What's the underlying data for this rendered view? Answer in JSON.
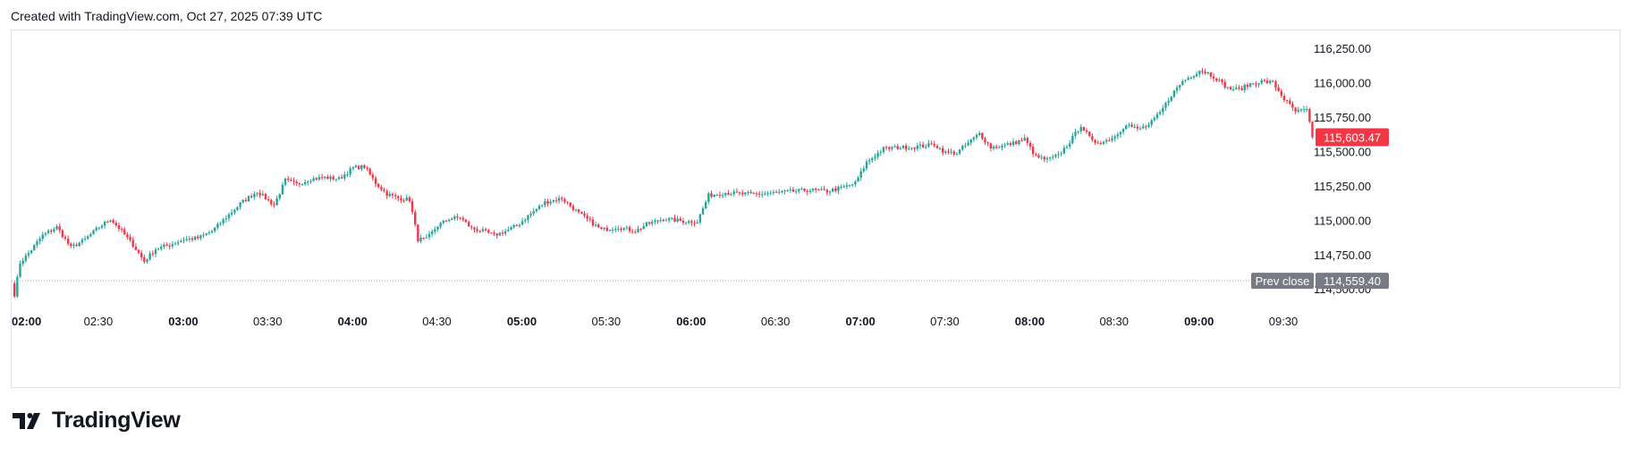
{
  "header": {
    "text": "Created with TradingView.com, Oct 27, 2025 07:39 UTC"
  },
  "brand": {
    "name": "TradingView",
    "icon": "tradingview-logo-icon"
  },
  "colors": {
    "up": "#26a69a",
    "down": "#f23645",
    "grid_text": "#131722",
    "prev_close_bg": "#787b86"
  },
  "chart_data": {
    "type": "candlestick",
    "ylim": [
      114300,
      116380
    ],
    "y_ticks": [
      114500,
      114750,
      115000,
      115250,
      115500,
      115750,
      116000,
      116250
    ],
    "y_tick_labels": [
      "114,500.00",
      "114,750.00",
      "115,000.00",
      "115,250.00",
      "115,500.00",
      "115,750.00",
      "116,000.00",
      "116,250.00"
    ],
    "x_ticks": [
      {
        "label": "02:00",
        "index": 0,
        "bold": true
      },
      {
        "label": "02:30",
        "index": 30,
        "bold": false
      },
      {
        "label": "03:00",
        "index": 60,
        "bold": true
      },
      {
        "label": "03:30",
        "index": 90,
        "bold": false
      },
      {
        "label": "04:00",
        "index": 120,
        "bold": true
      },
      {
        "label": "04:30",
        "index": 150,
        "bold": false
      },
      {
        "label": "05:00",
        "index": 180,
        "bold": true
      },
      {
        "label": "05:30",
        "index": 210,
        "bold": false
      },
      {
        "label": "06:00",
        "index": 240,
        "bold": true
      },
      {
        "label": "06:30",
        "index": 270,
        "bold": false
      },
      {
        "label": "07:00",
        "index": 300,
        "bold": true
      },
      {
        "label": "07:30",
        "index": 330,
        "bold": false
      },
      {
        "label": "08:00",
        "index": 360,
        "bold": true
      },
      {
        "label": "08:30",
        "index": 390,
        "bold": false
      },
      {
        "label": "09:00",
        "index": 420,
        "bold": true
      },
      {
        "label": "09:30",
        "index": 450,
        "bold": false
      }
    ],
    "last_price": {
      "value": 115603.47,
      "label": "115,603.47"
    },
    "prev_close": {
      "value": 114559.4,
      "label": "114,559.40",
      "caption": "Prev close"
    },
    "close_anchors": [
      [
        0,
        114460
      ],
      [
        2,
        114690
      ],
      [
        5,
        114760
      ],
      [
        10,
        114890
      ],
      [
        15,
        114950
      ],
      [
        20,
        114800
      ],
      [
        25,
        114860
      ],
      [
        30,
        114950
      ],
      [
        34,
        115010
      ],
      [
        38,
        114920
      ],
      [
        42,
        114820
      ],
      [
        46,
        114700
      ],
      [
        50,
        114790
      ],
      [
        55,
        114820
      ],
      [
        60,
        114860
      ],
      [
        65,
        114870
      ],
      [
        70,
        114920
      ],
      [
        75,
        115020
      ],
      [
        80,
        115120
      ],
      [
        86,
        115210
      ],
      [
        92,
        115110
      ],
      [
        96,
        115290
      ],
      [
        100,
        115260
      ],
      [
        105,
        115300
      ],
      [
        110,
        115310
      ],
      [
        115,
        115300
      ],
      [
        120,
        115380
      ],
      [
        124,
        115390
      ],
      [
        128,
        115270
      ],
      [
        132,
        115190
      ],
      [
        136,
        115160
      ],
      [
        140,
        115150
      ],
      [
        143,
        114860
      ],
      [
        146,
        114860
      ],
      [
        150,
        114960
      ],
      [
        154,
        115010
      ],
      [
        158,
        115020
      ],
      [
        162,
        114940
      ],
      [
        166,
        114920
      ],
      [
        170,
        114890
      ],
      [
        174,
        114920
      ],
      [
        178,
        114960
      ],
      [
        182,
        115030
      ],
      [
        188,
        115130
      ],
      [
        194,
        115160
      ],
      [
        200,
        115050
      ],
      [
        204,
        114990
      ],
      [
        208,
        114930
      ],
      [
        214,
        114950
      ],
      [
        220,
        114920
      ],
      [
        224,
        114970
      ],
      [
        230,
        115010
      ],
      [
        234,
        115000
      ],
      [
        238,
        114990
      ],
      [
        242,
        114990
      ],
      [
        246,
        115180
      ],
      [
        252,
        115200
      ],
      [
        258,
        115190
      ],
      [
        264,
        115190
      ],
      [
        270,
        115200
      ],
      [
        276,
        115210
      ],
      [
        282,
        115220
      ],
      [
        288,
        115210
      ],
      [
        294,
        115240
      ],
      [
        298,
        115270
      ],
      [
        302,
        115420
      ],
      [
        308,
        115520
      ],
      [
        314,
        115530
      ],
      [
        318,
        115530
      ],
      [
        322,
        115540
      ],
      [
        326,
        115550
      ],
      [
        330,
        115490
      ],
      [
        334,
        115490
      ],
      [
        338,
        115560
      ],
      [
        342,
        115630
      ],
      [
        346,
        115530
      ],
      [
        350,
        115540
      ],
      [
        354,
        115560
      ],
      [
        358,
        115590
      ],
      [
        362,
        115460
      ],
      [
        366,
        115440
      ],
      [
        370,
        115470
      ],
      [
        374,
        115570
      ],
      [
        378,
        115690
      ],
      [
        382,
        115570
      ],
      [
        386,
        115570
      ],
      [
        390,
        115610
      ],
      [
        394,
        115700
      ],
      [
        398,
        115660
      ],
      [
        402,
        115690
      ],
      [
        406,
        115780
      ],
      [
        410,
        115910
      ],
      [
        414,
        116010
      ],
      [
        418,
        116060
      ],
      [
        420,
        116090
      ],
      [
        423,
        116070
      ],
      [
        426,
        116030
      ],
      [
        430,
        115960
      ],
      [
        434,
        115950
      ],
      [
        438,
        115990
      ],
      [
        442,
        116010
      ],
      [
        446,
        116000
      ],
      [
        450,
        115880
      ],
      [
        454,
        115790
      ],
      [
        458,
        115800
      ],
      [
        460,
        115603.47
      ]
    ]
  }
}
